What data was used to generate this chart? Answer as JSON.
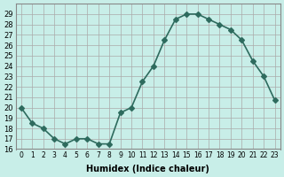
{
  "x": [
    0,
    1,
    2,
    3,
    4,
    5,
    6,
    7,
    8,
    9,
    10,
    11,
    12,
    13,
    14,
    15,
    16,
    17,
    18,
    19,
    20,
    21,
    22,
    23
  ],
  "y": [
    20.0,
    18.5,
    18.0,
    17.0,
    16.5,
    17.0,
    17.0,
    16.5,
    16.5,
    19.5,
    20.0,
    22.5,
    24.0,
    26.5,
    28.5,
    29.0,
    29.0,
    28.5,
    28.0,
    27.5,
    26.5,
    24.5,
    23.0,
    20.7
  ],
  "xlabel": "Humidex (Indice chaleur)",
  "ylim": [
    16,
    30
  ],
  "xlim": [
    -0.5,
    23.5
  ],
  "yticks": [
    16,
    17,
    18,
    19,
    20,
    21,
    22,
    23,
    24,
    25,
    26,
    27,
    28,
    29
  ],
  "xticks": [
    0,
    1,
    2,
    3,
    4,
    5,
    6,
    7,
    8,
    9,
    10,
    11,
    12,
    13,
    14,
    15,
    16,
    17,
    18,
    19,
    20,
    21,
    22,
    23
  ],
  "xtick_labels": [
    "0",
    "1",
    "2",
    "3",
    "4",
    "5",
    "6",
    "7",
    "8",
    "9",
    "10",
    "11",
    "12",
    "13",
    "14",
    "15",
    "16",
    "17",
    "18",
    "19",
    "20",
    "21",
    "22",
    "23"
  ],
  "line_color": "#2e6b5e",
  "marker": "D",
  "marker_size": 3,
  "bg_color": "#c8eee8",
  "grid_color": "#aaaaaa"
}
